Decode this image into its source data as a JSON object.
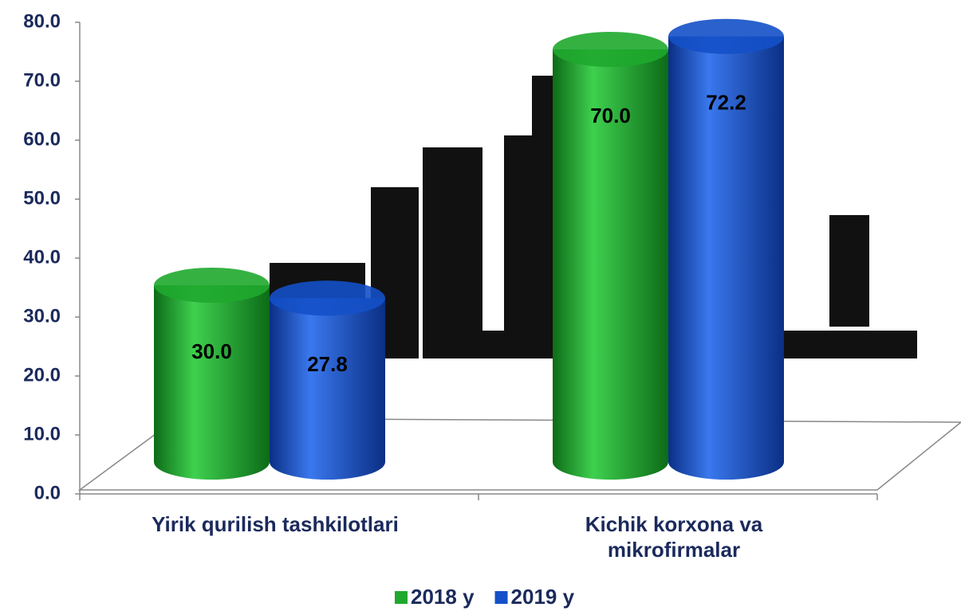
{
  "chart_data": {
    "type": "bar",
    "categories": [
      "Yirik qurilish tashkilotlari",
      "Kichik korxona va mikrofirmalar"
    ],
    "series": [
      {
        "name": "2018 y",
        "color": "#1fa82e",
        "values": [
          30.0,
          70.0
        ],
        "value_labels": [
          "30.0",
          "70.0"
        ]
      },
      {
        "name": "2019 y",
        "color": "#1450c8",
        "values": [
          27.8,
          72.2
        ],
        "value_labels": [
          "27.8",
          "72.2"
        ]
      }
    ],
    "ylim": [
      0,
      80
    ],
    "yticks": [
      {
        "value": 0,
        "label": "0.0"
      },
      {
        "value": 10,
        "label": "10.0"
      },
      {
        "value": 20,
        "label": "20.0"
      },
      {
        "value": 30,
        "label": "30.0"
      },
      {
        "value": 40,
        "label": "40.0"
      },
      {
        "value": 50,
        "label": "50.0"
      },
      {
        "value": 60,
        "label": "60.0"
      },
      {
        "value": 70,
        "label": "70.0"
      },
      {
        "value": 80,
        "label": "80.0"
      }
    ],
    "legend": "bottom"
  }
}
